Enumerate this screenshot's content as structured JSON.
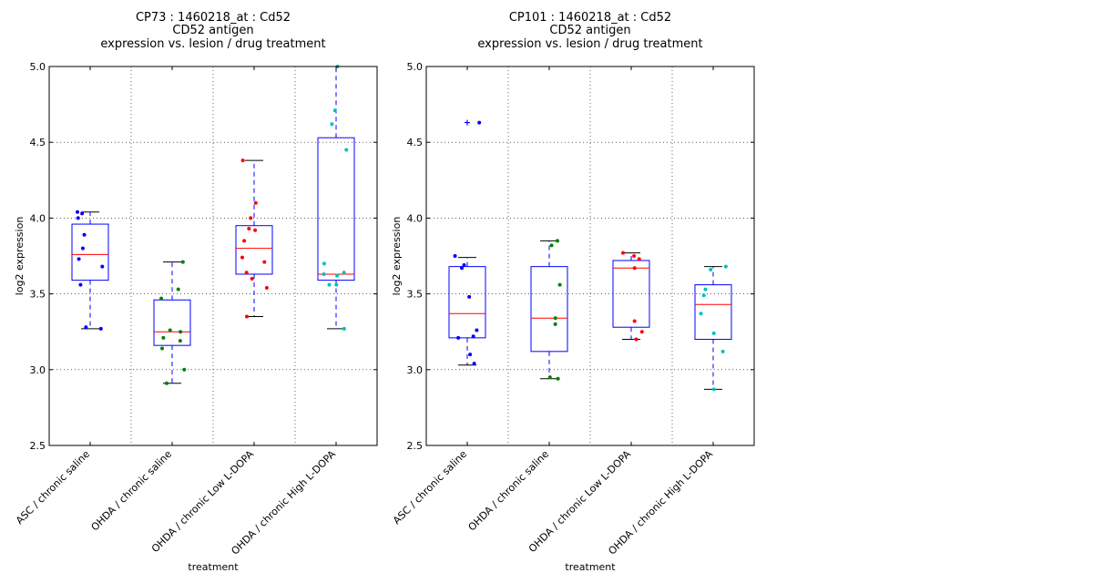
{
  "chart_data": [
    {
      "type": "box",
      "title_lines": [
        "CP73 : 1460218_at : Cd52",
        "CD52 antigen",
        "expression vs. lesion / drug treatment"
      ],
      "xlabel": "treatment",
      "ylabel": "log2 expression",
      "ylim": [
        2.5,
        5.0
      ],
      "yticks": [
        "2.5",
        "3.0",
        "3.5",
        "4.0",
        "4.5",
        "5.0"
      ],
      "grid": true,
      "categories": [
        "ASC / chronic saline",
        "OHDA / chronic saline",
        "OHDA / chronic Low L-DOPA",
        "OHDA / chronic High L-DOPA"
      ],
      "boxes": [
        {
          "whisker_low": 3.27,
          "q1": 3.59,
          "median": 3.76,
          "q3": 3.96,
          "whisker_high": 4.04,
          "outliers": []
        },
        {
          "whisker_low": 2.91,
          "q1": 3.16,
          "median": 3.25,
          "q3": 3.46,
          "whisker_high": 3.71,
          "outliers": []
        },
        {
          "whisker_low": 3.35,
          "q1": 3.63,
          "median": 3.8,
          "q3": 3.95,
          "whisker_high": 4.38,
          "outliers": []
        },
        {
          "whisker_low": 3.27,
          "q1": 3.59,
          "median": 3.63,
          "q3": 4.53,
          "whisker_high": 5.0,
          "outliers": []
        }
      ],
      "points": [
        [
          4.04,
          4.03,
          4.0,
          3.89,
          3.8,
          3.73,
          3.68,
          3.56,
          3.28,
          3.27
        ],
        [
          3.71,
          3.53,
          3.47,
          3.26,
          3.25,
          3.21,
          3.19,
          3.14,
          3.0,
          2.91
        ],
        [
          4.38,
          4.1,
          4.0,
          3.93,
          3.92,
          3.85,
          3.74,
          3.71,
          3.64,
          3.6,
          3.54,
          3.35
        ],
        [
          5.0,
          4.71,
          4.62,
          4.45,
          3.7,
          3.64,
          3.63,
          3.62,
          3.56,
          3.56,
          3.27
        ]
      ],
      "point_colors": [
        "#0000ff",
        "#008000",
        "#ff0000",
        "#00bfbf"
      ]
    },
    {
      "type": "box",
      "title_lines": [
        "CP101 : 1460218_at : Cd52",
        "CD52 antigen",
        "expression vs. lesion / drug treatment"
      ],
      "xlabel": "treatment",
      "ylabel": "log2 expression",
      "ylim": [
        2.5,
        5.0
      ],
      "yticks": [
        "2.5",
        "3.0",
        "3.5",
        "4.0",
        "4.5",
        "5.0"
      ],
      "grid": true,
      "categories": [
        "ASC / chronic saline",
        "OHDA / chronic saline",
        "OHDA / chronic Low L-DOPA",
        "OHDA / chronic High L-DOPA"
      ],
      "boxes": [
        {
          "whisker_low": 3.03,
          "q1": 3.21,
          "median": 3.37,
          "q3": 3.68,
          "whisker_high": 3.74,
          "outliers": [
            4.63
          ]
        },
        {
          "whisker_low": 2.94,
          "q1": 3.12,
          "median": 3.34,
          "q3": 3.68,
          "whisker_high": 3.85,
          "outliers": []
        },
        {
          "whisker_low": 3.2,
          "q1": 3.28,
          "median": 3.67,
          "q3": 3.72,
          "whisker_high": 3.77,
          "outliers": []
        },
        {
          "whisker_low": 2.87,
          "q1": 3.2,
          "median": 3.43,
          "q3": 3.56,
          "whisker_high": 3.68,
          "outliers": []
        }
      ],
      "points": [
        [
          4.63,
          3.75,
          3.69,
          3.67,
          3.48,
          3.26,
          3.22,
          3.21,
          3.1,
          3.04
        ],
        [
          3.85,
          3.82,
          3.56,
          3.34,
          3.3,
          2.95,
          2.94
        ],
        [
          3.77,
          3.75,
          3.73,
          3.67,
          3.32,
          3.25,
          3.2
        ],
        [
          3.68,
          3.66,
          3.53,
          3.49,
          3.37,
          3.24,
          3.12,
          2.87
        ]
      ],
      "point_colors": [
        "#0000ff",
        "#008000",
        "#ff0000",
        "#00bfbf"
      ]
    }
  ]
}
